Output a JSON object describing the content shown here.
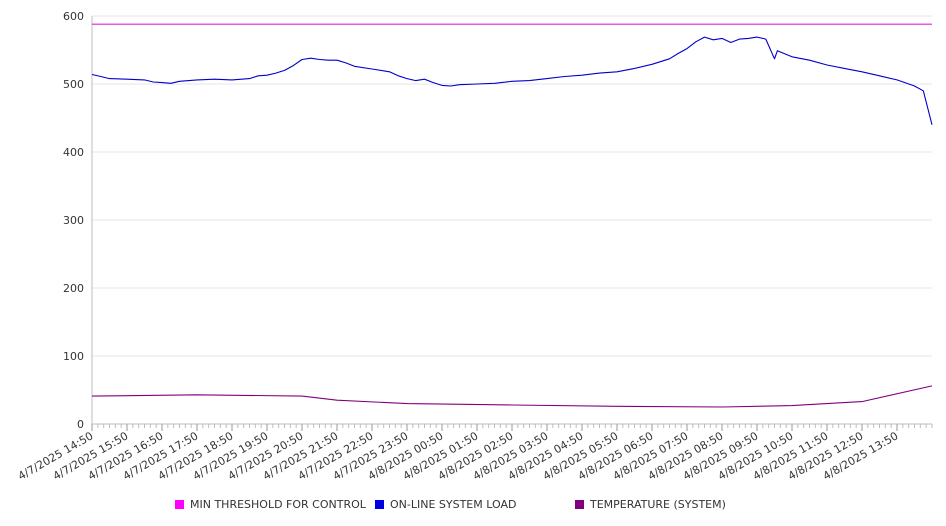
{
  "chart_data": {
    "type": "line",
    "title": "",
    "xlabel": "",
    "ylabel": "",
    "ylim": [
      0,
      600
    ],
    "y_ticks": [
      0,
      100,
      200,
      300,
      400,
      500,
      600
    ],
    "x_tick_labels": [
      "4/7/2025 14:50",
      "4/7/2025 15:50",
      "4/7/2025 16:50",
      "4/7/2025 17:50",
      "4/7/2025 18:50",
      "4/7/2025 19:50",
      "4/7/2025 20:50",
      "4/7/2025 21:50",
      "4/7/2025 22:50",
      "4/7/2025 23:50",
      "4/8/2025 00:50",
      "4/8/2025 01:50",
      "4/8/2025 02:50",
      "4/8/2025 03:50",
      "4/8/2025 04:50",
      "4/8/2025 05:50",
      "4/8/2025 06:50",
      "4/8/2025 07:50",
      "4/8/2025 08:50",
      "4/8/2025 09:50",
      "4/8/2025 10:50",
      "4/8/2025 11:50",
      "4/8/2025 12:50",
      "4/8/2025 13:50"
    ],
    "x_range": [
      "4/7/2025 14:50",
      "4/8/2025 14:50"
    ],
    "grid": true,
    "legend_position": "bottom",
    "series": [
      {
        "name": "MIN THRESHOLD FOR CONTROL",
        "color": "#e21ee2",
        "legend_color": "#ff00ff",
        "points": [
          [
            "4/7/2025 14:50",
            588
          ],
          [
            "4/8/2025 14:50",
            588
          ]
        ]
      },
      {
        "name": "ON-LINE SYSTEM LOAD",
        "color": "#0000cc",
        "legend_color": "#0000e6",
        "points": [
          [
            "4/7/2025 14:50",
            514
          ],
          [
            "4/7/2025 15:05",
            511
          ],
          [
            "4/7/2025 15:20",
            508
          ],
          [
            "4/7/2025 15:50",
            507
          ],
          [
            "4/7/2025 16:20",
            506
          ],
          [
            "4/7/2025 16:35",
            503
          ],
          [
            "4/7/2025 16:50",
            502
          ],
          [
            "4/7/2025 17:05",
            501
          ],
          [
            "4/7/2025 17:20",
            504
          ],
          [
            "4/7/2025 17:50",
            506
          ],
          [
            "4/7/2025 18:20",
            507
          ],
          [
            "4/7/2025 18:50",
            506
          ],
          [
            "4/7/2025 19:20",
            508
          ],
          [
            "4/7/2025 19:35",
            512
          ],
          [
            "4/7/2025 19:50",
            513
          ],
          [
            "4/7/2025 20:05",
            516
          ],
          [
            "4/7/2025 20:20",
            520
          ],
          [
            "4/7/2025 20:35",
            527
          ],
          [
            "4/7/2025 20:50",
            536
          ],
          [
            "4/7/2025 21:05",
            538
          ],
          [
            "4/7/2025 21:20",
            536
          ],
          [
            "4/7/2025 21:35",
            535
          ],
          [
            "4/7/2025 21:50",
            535
          ],
          [
            "4/7/2025 22:05",
            531
          ],
          [
            "4/7/2025 22:20",
            526
          ],
          [
            "4/7/2025 22:50",
            522
          ],
          [
            "4/7/2025 23:20",
            518
          ],
          [
            "4/7/2025 23:35",
            512
          ],
          [
            "4/7/2025 23:50",
            508
          ],
          [
            "4/8/2025 00:05",
            505
          ],
          [
            "4/8/2025 00:20",
            507
          ],
          [
            "4/8/2025 00:35",
            502
          ],
          [
            "4/8/2025 00:50",
            498
          ],
          [
            "4/8/2025 01:05",
            497
          ],
          [
            "4/8/2025 01:20",
            499
          ],
          [
            "4/8/2025 01:50",
            500
          ],
          [
            "4/8/2025 02:20",
            501
          ],
          [
            "4/8/2025 02:50",
            504
          ],
          [
            "4/8/2025 03:20",
            505
          ],
          [
            "4/8/2025 03:50",
            508
          ],
          [
            "4/8/2025 04:20",
            511
          ],
          [
            "4/8/2025 04:50",
            513
          ],
          [
            "4/8/2025 05:20",
            516
          ],
          [
            "4/8/2025 05:50",
            518
          ],
          [
            "4/8/2025 06:20",
            523
          ],
          [
            "4/8/2025 06:50",
            529
          ],
          [
            "4/8/2025 07:20",
            537
          ],
          [
            "4/8/2025 07:35",
            545
          ],
          [
            "4/8/2025 07:50",
            552
          ],
          [
            "4/8/2025 08:05",
            562
          ],
          [
            "4/8/2025 08:20",
            569
          ],
          [
            "4/8/2025 08:35",
            565
          ],
          [
            "4/8/2025 08:50",
            567
          ],
          [
            "4/8/2025 09:05",
            561
          ],
          [
            "4/8/2025 09:20",
            566
          ],
          [
            "4/8/2025 09:35",
            567
          ],
          [
            "4/8/2025 09:50",
            569
          ],
          [
            "4/8/2025 10:05",
            566
          ],
          [
            "4/8/2025 10:20",
            537
          ],
          [
            "4/8/2025 10:25",
            549
          ],
          [
            "4/8/2025 10:50",
            540
          ],
          [
            "4/8/2025 11:20",
            535
          ],
          [
            "4/8/2025 11:50",
            528
          ],
          [
            "4/8/2025 12:20",
            523
          ],
          [
            "4/8/2025 12:50",
            518
          ],
          [
            "4/8/2025 13:20",
            512
          ],
          [
            "4/8/2025 13:50",
            506
          ],
          [
            "4/8/2025 14:20",
            497
          ],
          [
            "4/8/2025 14:35",
            490
          ],
          [
            "4/8/2025 14:50",
            440
          ]
        ]
      },
      {
        "name": "TEMPERATURE (SYSTEM)",
        "color": "#800080",
        "legend_color": "#800080",
        "points": [
          [
            "4/7/2025 14:50",
            41
          ],
          [
            "4/7/2025 17:50",
            43
          ],
          [
            "4/7/2025 20:50",
            41
          ],
          [
            "4/7/2025 21:50",
            35
          ],
          [
            "4/7/2025 23:50",
            30
          ],
          [
            "4/8/2025 02:50",
            28
          ],
          [
            "4/8/2025 05:50",
            26
          ],
          [
            "4/8/2025 08:50",
            25
          ],
          [
            "4/8/2025 10:50",
            27
          ],
          [
            "4/8/2025 12:50",
            33
          ],
          [
            "4/8/2025 14:50",
            56
          ]
        ]
      }
    ]
  }
}
